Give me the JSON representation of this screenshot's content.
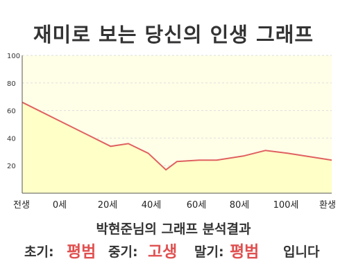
{
  "title": "재미로 보는 당신의 인생 그래프",
  "chart_data": {
    "type": "area",
    "title": "재미로 보는 당신의 인생 그래프",
    "xlabel": "",
    "ylabel": "",
    "ylim": [
      0,
      100
    ],
    "y_ticks": [
      20,
      40,
      60,
      80,
      100
    ],
    "x_tick_labels": [
      "전생",
      "0세",
      "20세",
      "40세",
      "60세",
      "80세",
      "100세",
      "환생"
    ],
    "grid": true,
    "x": [
      -20,
      0,
      10,
      20,
      28,
      37,
      45,
      50,
      60,
      68,
      80,
      90,
      100,
      120
    ],
    "values": [
      66,
      50,
      42,
      34,
      36,
      29,
      17,
      23,
      24,
      24,
      27,
      31,
      29,
      24
    ],
    "series_color": "#e06060",
    "fill_color": "#ffffc8"
  },
  "summary": "박현준님의 그래프 분석결과",
  "verdict": {
    "early_label": "초기:",
    "early_value": "평범",
    "mid_label": "중기:",
    "mid_value": "고생",
    "late_label": "말기:",
    "late_value": "평범",
    "suffix": "입니다"
  }
}
